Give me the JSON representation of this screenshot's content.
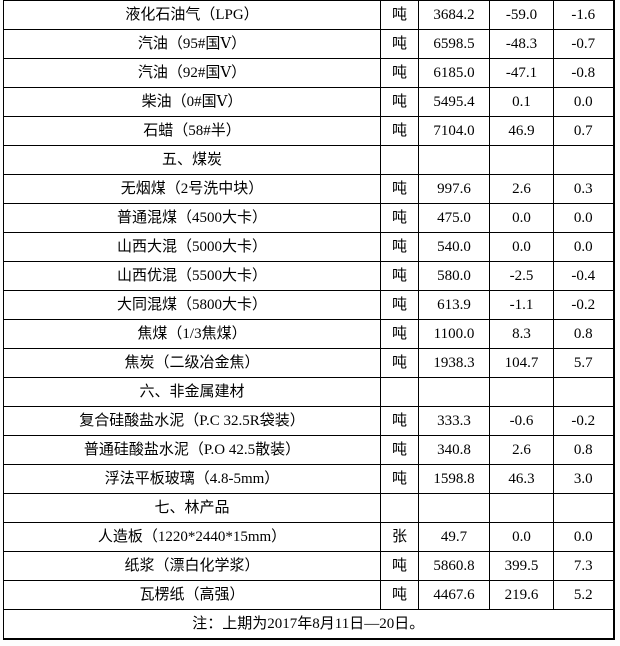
{
  "colors": {
    "background": "#fdfdfd",
    "cell_background": "#ffffff",
    "border": "#000000",
    "text": "#000000"
  },
  "table": {
    "rows": [
      {
        "type": "item",
        "name": "液化石油气（LPG）",
        "unit": "吨",
        "price": "3684.2",
        "change": "-59.0",
        "pct": "-1.6"
      },
      {
        "type": "item",
        "name": "汽油（95#国Ⅴ）",
        "unit": "吨",
        "price": "6598.5",
        "change": "-48.3",
        "pct": "-0.7"
      },
      {
        "type": "item",
        "name": "汽油（92#国Ⅴ）",
        "unit": "吨",
        "price": "6185.0",
        "change": "-47.1",
        "pct": "-0.8"
      },
      {
        "type": "item",
        "name": "柴油（0#国Ⅴ）",
        "unit": "吨",
        "price": "5495.4",
        "change": "0.1",
        "pct": "0.0"
      },
      {
        "type": "item",
        "name": "石蜡（58#半）",
        "unit": "吨",
        "price": "7104.0",
        "change": "46.9",
        "pct": "0.7"
      },
      {
        "type": "section",
        "name": "五、煤炭",
        "unit": "",
        "price": "",
        "change": "",
        "pct": ""
      },
      {
        "type": "item",
        "name": "无烟煤（2号洗中块）",
        "unit": "吨",
        "price": "997.6",
        "change": "2.6",
        "pct": "0.3"
      },
      {
        "type": "item",
        "name": "普通混煤（4500大卡）",
        "unit": "吨",
        "price": "475.0",
        "change": "0.0",
        "pct": "0.0"
      },
      {
        "type": "item",
        "name": "山西大混（5000大卡）",
        "unit": "吨",
        "price": "540.0",
        "change": "0.0",
        "pct": "0.0"
      },
      {
        "type": "item",
        "name": "山西优混（5500大卡）",
        "unit": "吨",
        "price": "580.0",
        "change": "-2.5",
        "pct": "-0.4"
      },
      {
        "type": "item",
        "name": "大同混煤（5800大卡）",
        "unit": "吨",
        "price": "613.9",
        "change": "-1.1",
        "pct": "-0.2"
      },
      {
        "type": "item",
        "name": "焦煤（1/3焦煤）",
        "unit": "吨",
        "price": "1100.0",
        "change": "8.3",
        "pct": "0.8"
      },
      {
        "type": "item",
        "name": "焦炭（二级冶金焦）",
        "unit": "吨",
        "price": "1938.3",
        "change": "104.7",
        "pct": "5.7"
      },
      {
        "type": "section",
        "name": "六、非金属建材",
        "unit": "",
        "price": "",
        "change": "",
        "pct": ""
      },
      {
        "type": "item",
        "name": "复合硅酸盐水泥（P.C 32.5R袋装）",
        "unit": "吨",
        "price": "333.3",
        "change": "-0.6",
        "pct": "-0.2"
      },
      {
        "type": "item",
        "name": "普通硅酸盐水泥（P.O 42.5散装）",
        "unit": "吨",
        "price": "340.8",
        "change": "2.6",
        "pct": "0.8"
      },
      {
        "type": "item",
        "name": "浮法平板玻璃（4.8-5mm）",
        "unit": "吨",
        "price": "1598.8",
        "change": "46.3",
        "pct": "3.0"
      },
      {
        "type": "section",
        "name": "七、林产品",
        "unit": "",
        "price": "",
        "change": "",
        "pct": ""
      },
      {
        "type": "item",
        "name": "人造板（1220*2440*15mm）",
        "unit": "张",
        "price": "49.7",
        "change": "0.0",
        "pct": "0.0"
      },
      {
        "type": "item",
        "name": "纸浆（漂白化学浆）",
        "unit": "吨",
        "price": "5860.8",
        "change": "399.5",
        "pct": "7.3"
      },
      {
        "type": "item",
        "name": "瓦楞纸（高强）",
        "unit": "吨",
        "price": "4467.6",
        "change": "219.6",
        "pct": "5.2"
      }
    ],
    "footnote": "注：上期为2017年8月11日—20日。"
  }
}
